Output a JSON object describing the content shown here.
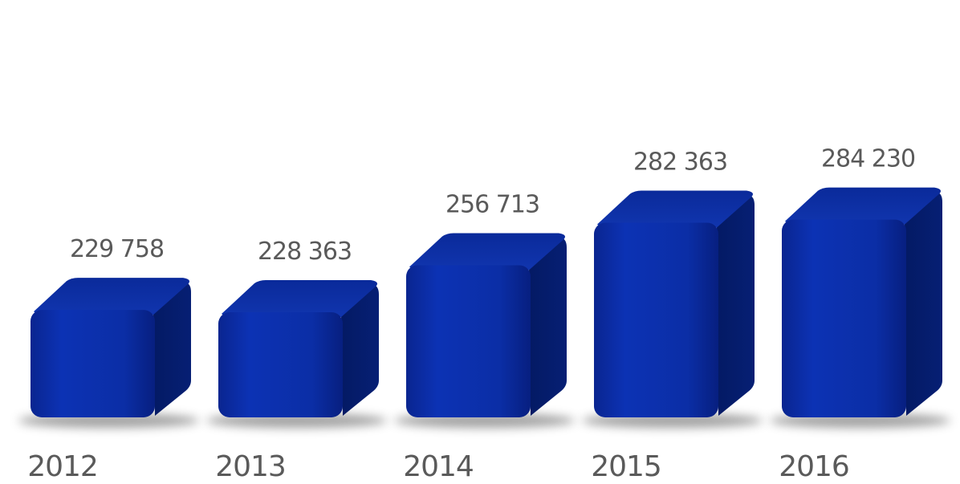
{
  "chart_data": {
    "type": "bar",
    "categories": [
      "2012",
      "2013",
      "2014",
      "2015",
      "2016"
    ],
    "values": [
      229758,
      228363,
      256713,
      282363,
      284230
    ],
    "value_labels": [
      "229 758",
      "228 363",
      "256 713",
      "282 363",
      "284 230"
    ],
    "title": "",
    "xlabel": "",
    "ylabel": "",
    "ylim": [
      0,
      300000
    ],
    "grid": false,
    "legend": "none",
    "colors": {
      "front": "#0b2ea6",
      "front_dark": "#061d78",
      "top": "#1a3db8",
      "side": "#04195e",
      "shadow": "#555555",
      "text": "#5a5a5a"
    }
  }
}
